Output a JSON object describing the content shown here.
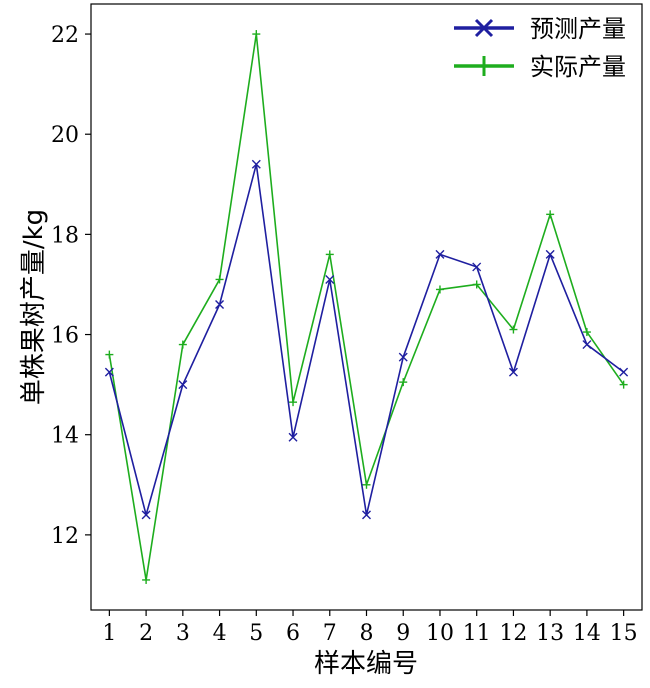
{
  "chart_data": {
    "type": "line",
    "title": "",
    "xlabel": "样本编号",
    "ylabel": "单株果树产量/kg",
    "x": [
      1,
      2,
      3,
      4,
      5,
      6,
      7,
      8,
      9,
      10,
      11,
      12,
      13,
      14,
      15
    ],
    "ylim": [
      10.5,
      22.6
    ],
    "yticks": [
      12,
      14,
      16,
      18,
      20,
      22
    ],
    "grid": false,
    "legend_position": "top-right",
    "series": [
      {
        "name": "预测产量",
        "color": "#1f1fa0",
        "marker": "x",
        "values": [
          15.25,
          12.4,
          15.0,
          16.6,
          19.4,
          13.95,
          17.1,
          12.4,
          15.55,
          17.6,
          17.35,
          15.25,
          17.6,
          15.8,
          15.25
        ]
      },
      {
        "name": "实际产量",
        "color": "#1ead1e",
        "marker": "+",
        "values": [
          15.6,
          11.1,
          15.8,
          17.1,
          22.0,
          14.65,
          17.6,
          13.0,
          15.05,
          16.9,
          17.0,
          16.1,
          18.4,
          16.05,
          15.0
        ]
      }
    ]
  }
}
